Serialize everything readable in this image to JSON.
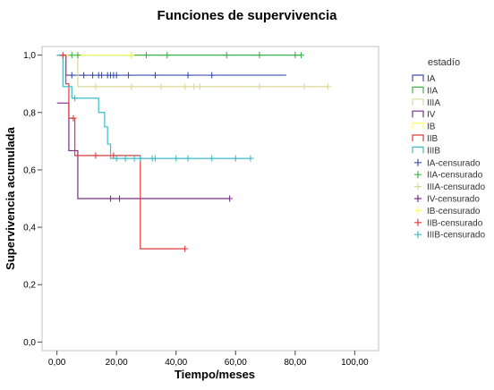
{
  "chart_data": {
    "type": "line",
    "title": "Funciones de supervivencia",
    "xlabel": "Tiempo/meses",
    "ylabel": "Supervivencia acumulada",
    "xlim": [
      -5,
      108
    ],
    "ylim": [
      -0.03,
      1.03
    ],
    "xticks": [
      0,
      20,
      40,
      60,
      80,
      100
    ],
    "xtick_labels": [
      "0,00",
      "20,00",
      "40,00",
      "60,00",
      "80,00",
      "100,00"
    ],
    "yticks": [
      0,
      0.2,
      0.4,
      0.6,
      0.8,
      1.0
    ],
    "ytick_labels": [
      "0,0",
      "0,2",
      "0,4",
      "0,6",
      "0,8",
      "1,0"
    ],
    "grid": false,
    "legend_title": "estadío",
    "legend_position": "right",
    "series": [
      {
        "name": "IA",
        "color": "#3d4fb0",
        "steps": [
          [
            0,
            1.0
          ],
          [
            3,
            1.0
          ],
          [
            3,
            0.93
          ],
          [
            77,
            0.93
          ]
        ],
        "censored": [
          [
            5,
            0.93
          ],
          [
            9,
            0.93
          ],
          [
            12,
            0.93
          ],
          [
            14,
            0.93
          ],
          [
            15,
            0.93
          ],
          [
            17,
            0.93
          ],
          [
            18,
            0.93
          ],
          [
            19,
            0.93
          ],
          [
            20,
            0.93
          ],
          [
            24,
            0.93
          ],
          [
            33,
            0.93
          ],
          [
            44,
            0.93
          ],
          [
            52,
            0.93
          ]
        ]
      },
      {
        "name": "IIA",
        "color": "#3fb04a",
        "steps": [
          [
            0,
            1.0
          ],
          [
            82,
            1.0
          ]
        ],
        "censored": [
          [
            5,
            1.0
          ],
          [
            7,
            1.0
          ],
          [
            25,
            1.0
          ],
          [
            30,
            1.0
          ],
          [
            37,
            1.0
          ],
          [
            57,
            1.0
          ],
          [
            68,
            1.0
          ],
          [
            80,
            1.0
          ],
          [
            82,
            1.0
          ]
        ]
      },
      {
        "name": "IIIA",
        "color": "#dad89a",
        "steps": [
          [
            0,
            1.0
          ],
          [
            7,
            1.0
          ],
          [
            7,
            0.89
          ],
          [
            91,
            0.89
          ]
        ],
        "censored": [
          [
            13,
            0.89
          ],
          [
            25,
            0.89
          ],
          [
            35,
            0.89
          ],
          [
            43,
            0.89
          ],
          [
            46,
            0.89
          ],
          [
            48,
            0.89
          ],
          [
            68,
            0.89
          ],
          [
            83,
            0.89
          ],
          [
            91,
            0.89
          ]
        ]
      },
      {
        "name": "IV",
        "color": "#7b2d8b",
        "steps": [
          [
            0,
            0.833
          ],
          [
            4,
            0.833
          ],
          [
            4,
            0.667
          ],
          [
            7,
            0.667
          ],
          [
            7,
            0.5
          ],
          [
            58,
            0.5
          ]
        ],
        "censored": [
          [
            18,
            0.5
          ],
          [
            21,
            0.5
          ],
          [
            58,
            0.5
          ]
        ]
      },
      {
        "name": "IB",
        "color": "#ffff66",
        "steps": [
          [
            0,
            1.0
          ],
          [
            25,
            1.0
          ]
        ],
        "censored": [
          [
            25,
            1.0
          ]
        ]
      },
      {
        "name": "IIB",
        "color": "#e23a3a",
        "steps": [
          [
            0,
            1.0
          ],
          [
            3,
            1.0
          ],
          [
            3,
            0.9
          ],
          [
            4,
            0.9
          ],
          [
            4,
            0.78
          ],
          [
            6,
            0.78
          ],
          [
            6,
            0.65
          ],
          [
            28,
            0.65
          ],
          [
            28,
            0.325
          ],
          [
            43,
            0.325
          ]
        ],
        "censored": [
          [
            2,
            1.0
          ],
          [
            5.5,
            0.78
          ],
          [
            13,
            0.65
          ],
          [
            19,
            0.65
          ],
          [
            43,
            0.325
          ]
        ]
      },
      {
        "name": "IIIB",
        "color": "#3fbcc8",
        "steps": [
          [
            0,
            1.0
          ],
          [
            2,
            1.0
          ],
          [
            2,
            0.89
          ],
          [
            5,
            0.89
          ],
          [
            5,
            0.85
          ],
          [
            14,
            0.85
          ],
          [
            14,
            0.8
          ],
          [
            16,
            0.8
          ],
          [
            16,
            0.75
          ],
          [
            17,
            0.75
          ],
          [
            17,
            0.69
          ],
          [
            18,
            0.69
          ],
          [
            18,
            0.64
          ],
          [
            65,
            0.64
          ]
        ],
        "censored": [
          [
            6,
            0.85
          ],
          [
            20,
            0.64
          ],
          [
            23,
            0.64
          ],
          [
            26,
            0.64
          ],
          [
            28,
            0.64
          ],
          [
            32,
            0.64
          ],
          [
            33,
            0.64
          ],
          [
            40,
            0.64
          ],
          [
            44,
            0.64
          ],
          [
            52,
            0.64
          ],
          [
            60,
            0.64
          ],
          [
            65,
            0.64
          ]
        ]
      }
    ],
    "censored_legend": [
      {
        "name": "IA-censurado",
        "color": "#3d4fb0"
      },
      {
        "name": "IIA-censurado",
        "color": "#3fb04a"
      },
      {
        "name": "IIIA-censurado",
        "color": "#dad89a"
      },
      {
        "name": "IV-censurado",
        "color": "#7b2d8b"
      },
      {
        "name": "IB-censurado",
        "color": "#ffff66"
      },
      {
        "name": "IIB-censurado",
        "color": "#e23a3a"
      },
      {
        "name": "IIIB-censurado",
        "color": "#3fbcc8"
      }
    ]
  }
}
